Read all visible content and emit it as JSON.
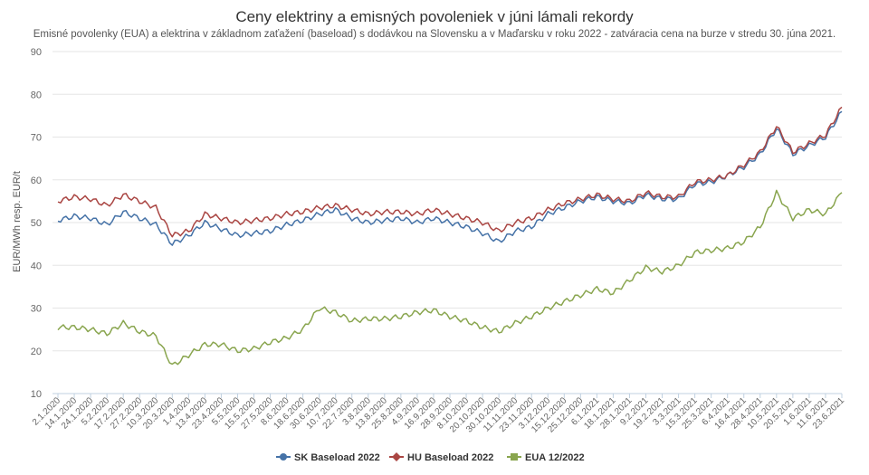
{
  "chart_data": {
    "type": "line",
    "title": "Ceny elektriny a emisných povoleniek v júni lámali rekordy",
    "subtitle": "Emisné povolenky (EUA) a elektrina v základnom zaťažení (baseload) s dodávkou na Slovensku a v Maďarsku v roku 2022 - zatváracia cena na burze v stredu 30. júna 2021.",
    "xlabel": "",
    "ylabel": "EUR/MWh resp. EUR/t",
    "ylim": [
      10,
      90
    ],
    "yticks": [
      10,
      20,
      30,
      40,
      50,
      60,
      70,
      80,
      90
    ],
    "grid": true,
    "legend": "bottom-center",
    "categories": [
      "2.1.2020",
      "14.1.2020",
      "24.1.2020",
      "5.2.2020",
      "17.2.2020",
      "27.2.2020",
      "10.3.2020",
      "20.3.2020",
      "1.4.2020",
      "13.4.2020",
      "23.4.2020",
      "5.5.2020",
      "15.5.2020",
      "27.5.2020",
      "8.6.2020",
      "18.6.2020",
      "30.6.2020",
      "10.7.2020",
      "22.7.2020",
      "3.8.2020",
      "13.8.2020",
      "25.8.2020",
      "4.9.2020",
      "16.9.2020",
      "28.9.2020",
      "8.10.2020",
      "20.10.2020",
      "30.10.2020",
      "11.11.2020",
      "23.11.2020",
      "3.12.2020",
      "15.12.2020",
      "25.12.2020",
      "6.1.2021",
      "18.1.2021",
      "28.1.2021",
      "9.2.2021",
      "19.2.2021",
      "3.3.2021",
      "15.3.2021",
      "25.3.2021",
      "6.4.2021",
      "16.4.2021",
      "28.4.2021",
      "10.5.2021",
      "20.5.2021",
      "1.6.2021",
      "11.6.2021",
      "23.6.2021"
    ],
    "series": [
      {
        "name": "SK Baseload 2022",
        "color": "#4572a7",
        "values": [
          50.5,
          51.5,
          51,
          49.5,
          52.5,
          51,
          49.5,
          45,
          47,
          50,
          48.5,
          47,
          47.5,
          48,
          49.5,
          50.5,
          52,
          53,
          51,
          50,
          50.5,
          51,
          50,
          51,
          50,
          49,
          47.5,
          45.5,
          48,
          49,
          52,
          53.5,
          55,
          56,
          55,
          54.5,
          56.5,
          55.5,
          55.5,
          59,
          59.5,
          61,
          63,
          66,
          72,
          66,
          68,
          70,
          76
        ]
      },
      {
        "name": "HU Baseload 2022",
        "color": "#aa4643",
        "values": [
          55,
          56,
          55.5,
          54,
          56.5,
          55,
          53.5,
          47,
          48,
          52,
          51,
          50,
          50.5,
          51,
          52,
          52.5,
          53.5,
          54,
          53,
          52,
          52.5,
          52.5,
          52,
          53,
          52,
          51,
          50,
          48,
          50,
          51,
          53,
          54.5,
          55.5,
          56.5,
          55.5,
          55,
          57,
          56,
          56,
          59.5,
          60,
          61,
          63.5,
          66.5,
          72.5,
          66.5,
          68.5,
          70.5,
          77
        ]
      },
      {
        "name": "EUA 12/2022",
        "color": "#89a54e",
        "values": [
          25.5,
          25.5,
          25,
          24,
          26.5,
          24.5,
          23.5,
          16.5,
          19,
          21.5,
          21.5,
          20,
          20.5,
          22,
          23,
          25,
          30,
          29,
          27,
          27.5,
          27.5,
          28,
          29,
          29.5,
          28,
          27,
          25.5,
          24.5,
          26.5,
          28,
          30,
          31.5,
          33,
          34.5,
          33.5,
          36.5,
          39.5,
          38.5,
          40,
          43,
          43.5,
          44,
          45.5,
          49,
          57,
          51,
          53,
          52,
          57
        ]
      }
    ]
  }
}
